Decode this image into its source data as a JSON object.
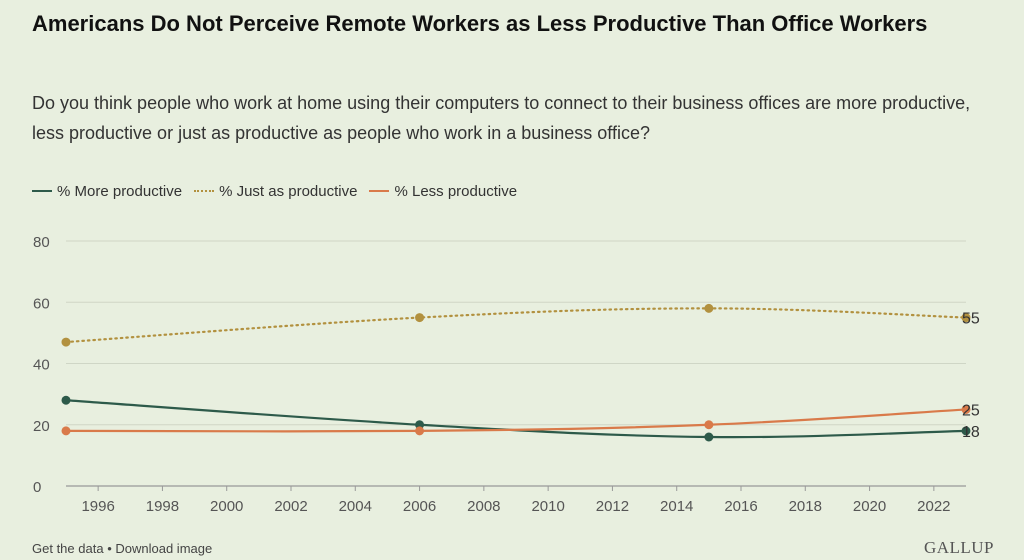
{
  "chart_data": {
    "type": "line",
    "title": "Americans Do Not Perceive Remote Workers as Less Productive Than Office Workers",
    "subtitle": "Do you think people who work at home using their computers to connect to their business offices are more productive, less productive or just as productive as people who work in a business office?",
    "xlabel": "",
    "ylabel": "",
    "xlim": [
      1995,
      2023
    ],
    "ylim": [
      0,
      80
    ],
    "x_ticks": [
      "1996",
      "1998",
      "2000",
      "2002",
      "2004",
      "2006",
      "2008",
      "2010",
      "2012",
      "2014",
      "2016",
      "2018",
      "2020",
      "2022"
    ],
    "y_ticks": [
      "0",
      "20",
      "40",
      "60",
      "80"
    ],
    "grid": "horizontal",
    "legend_position": "top-left",
    "series": [
      {
        "name": "% More productive",
        "color": "#2d5a4a",
        "style": "solid",
        "points": [
          {
            "x": 1995,
            "y": 28
          },
          {
            "x": 2006,
            "y": 20
          },
          {
            "x": 2015,
            "y": 16
          },
          {
            "x": 2023,
            "y": 18
          }
        ],
        "end_label": "18"
      },
      {
        "name": "% Just as productive",
        "color": "#b2913f",
        "style": "dotted",
        "points": [
          {
            "x": 1995,
            "y": 47
          },
          {
            "x": 2006,
            "y": 55
          },
          {
            "x": 2015,
            "y": 58
          },
          {
            "x": 2023,
            "y": 55
          }
        ],
        "end_label": "55"
      },
      {
        "name": "% Less productive",
        "color": "#d97a4a",
        "style": "solid",
        "points": [
          {
            "x": 1995,
            "y": 18
          },
          {
            "x": 2006,
            "y": 18
          },
          {
            "x": 2015,
            "y": 20
          },
          {
            "x": 2023,
            "y": 25
          }
        ],
        "end_label": "25"
      }
    ]
  },
  "footer": {
    "get_data": "Get the data",
    "separator": "•",
    "download": "Download image"
  },
  "brand": {
    "name": "GALLUP"
  }
}
